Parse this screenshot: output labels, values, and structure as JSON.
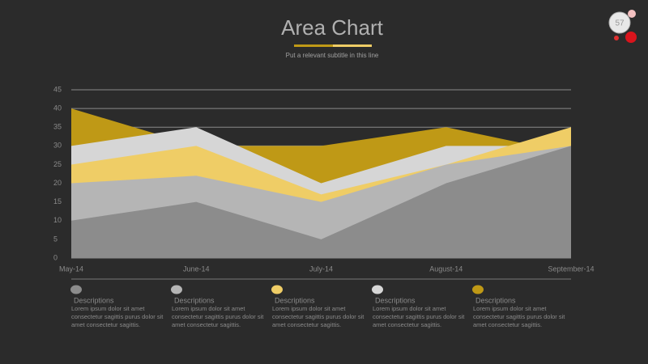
{
  "page_number": "57",
  "chart_data": {
    "type": "area",
    "title": "Area Chart",
    "subtitle": "Put a relevant subtitle in this line",
    "categories": [
      "May-14",
      "June-14",
      "July-14",
      "August-14",
      "September-14"
    ],
    "series": [
      {
        "name": "Descriptions",
        "color": "#8c8c8c",
        "values": [
          10,
          15,
          5,
          20,
          30
        ],
        "description_lines": [
          "Lorem ipsum dolor sit amet",
          "consectetur sagittis purus dolor sit",
          "amet consectetur sagittis."
        ]
      },
      {
        "name": "Descriptions",
        "color": "#b5b5b5",
        "values": [
          20,
          22,
          15,
          25,
          30
        ],
        "description_lines": [
          "Lorem ipsum dolor sit amet",
          "consectetur sagittis purus dolor sit",
          "amet consectetur sagittis."
        ]
      },
      {
        "name": "Descriptions",
        "color": "#efcd66",
        "values": [
          25,
          30,
          17,
          25,
          35
        ],
        "description_lines": [
          "Lorem ipsum dolor sit amet",
          "consectetur sagittis purus dolor sit",
          "amet consectetur sagittis."
        ]
      },
      {
        "name": "Descriptions",
        "color": "#d6d6d6",
        "values": [
          30,
          35,
          20,
          30,
          30
        ],
        "description_lines": [
          "Lorem ipsum dolor sit amet",
          "consectetur sagittis purus dolor sit",
          "amet consectetur sagittis."
        ]
      },
      {
        "name": "Descriptions",
        "color": "#bf9916",
        "values": [
          40,
          30,
          30,
          35,
          28
        ],
        "description_lines": [
          "Lorem ipsum dolor sit amet",
          "consectetur sagittis purus dolor sit",
          "amet consectetur sagittis."
        ]
      }
    ],
    "ylim": [
      0,
      45
    ],
    "yticks": [
      0,
      5,
      10,
      15,
      20,
      25,
      30,
      35,
      40,
      45
    ],
    "grid": true
  }
}
